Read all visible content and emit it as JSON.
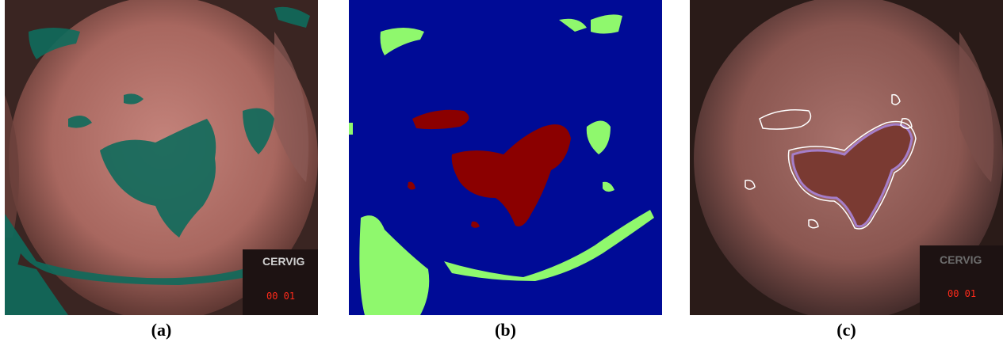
{
  "figure": {
    "captions": {
      "a": "(a)",
      "b": "(b)",
      "c": "(c)"
    },
    "image_overlay": {
      "brand_text": "CERVIG",
      "timestamp": "00  01"
    },
    "colors": {
      "tissue": "#b4756f",
      "overlay_teal": "#0f6b5c",
      "mask_background": "#000b96",
      "mask_red": "#8b0000",
      "mask_green": "#8ff86d",
      "contour_white": "#ffffff",
      "contour_purple": "#a57ec9",
      "timestamp_red": "#ff2a1a"
    }
  }
}
